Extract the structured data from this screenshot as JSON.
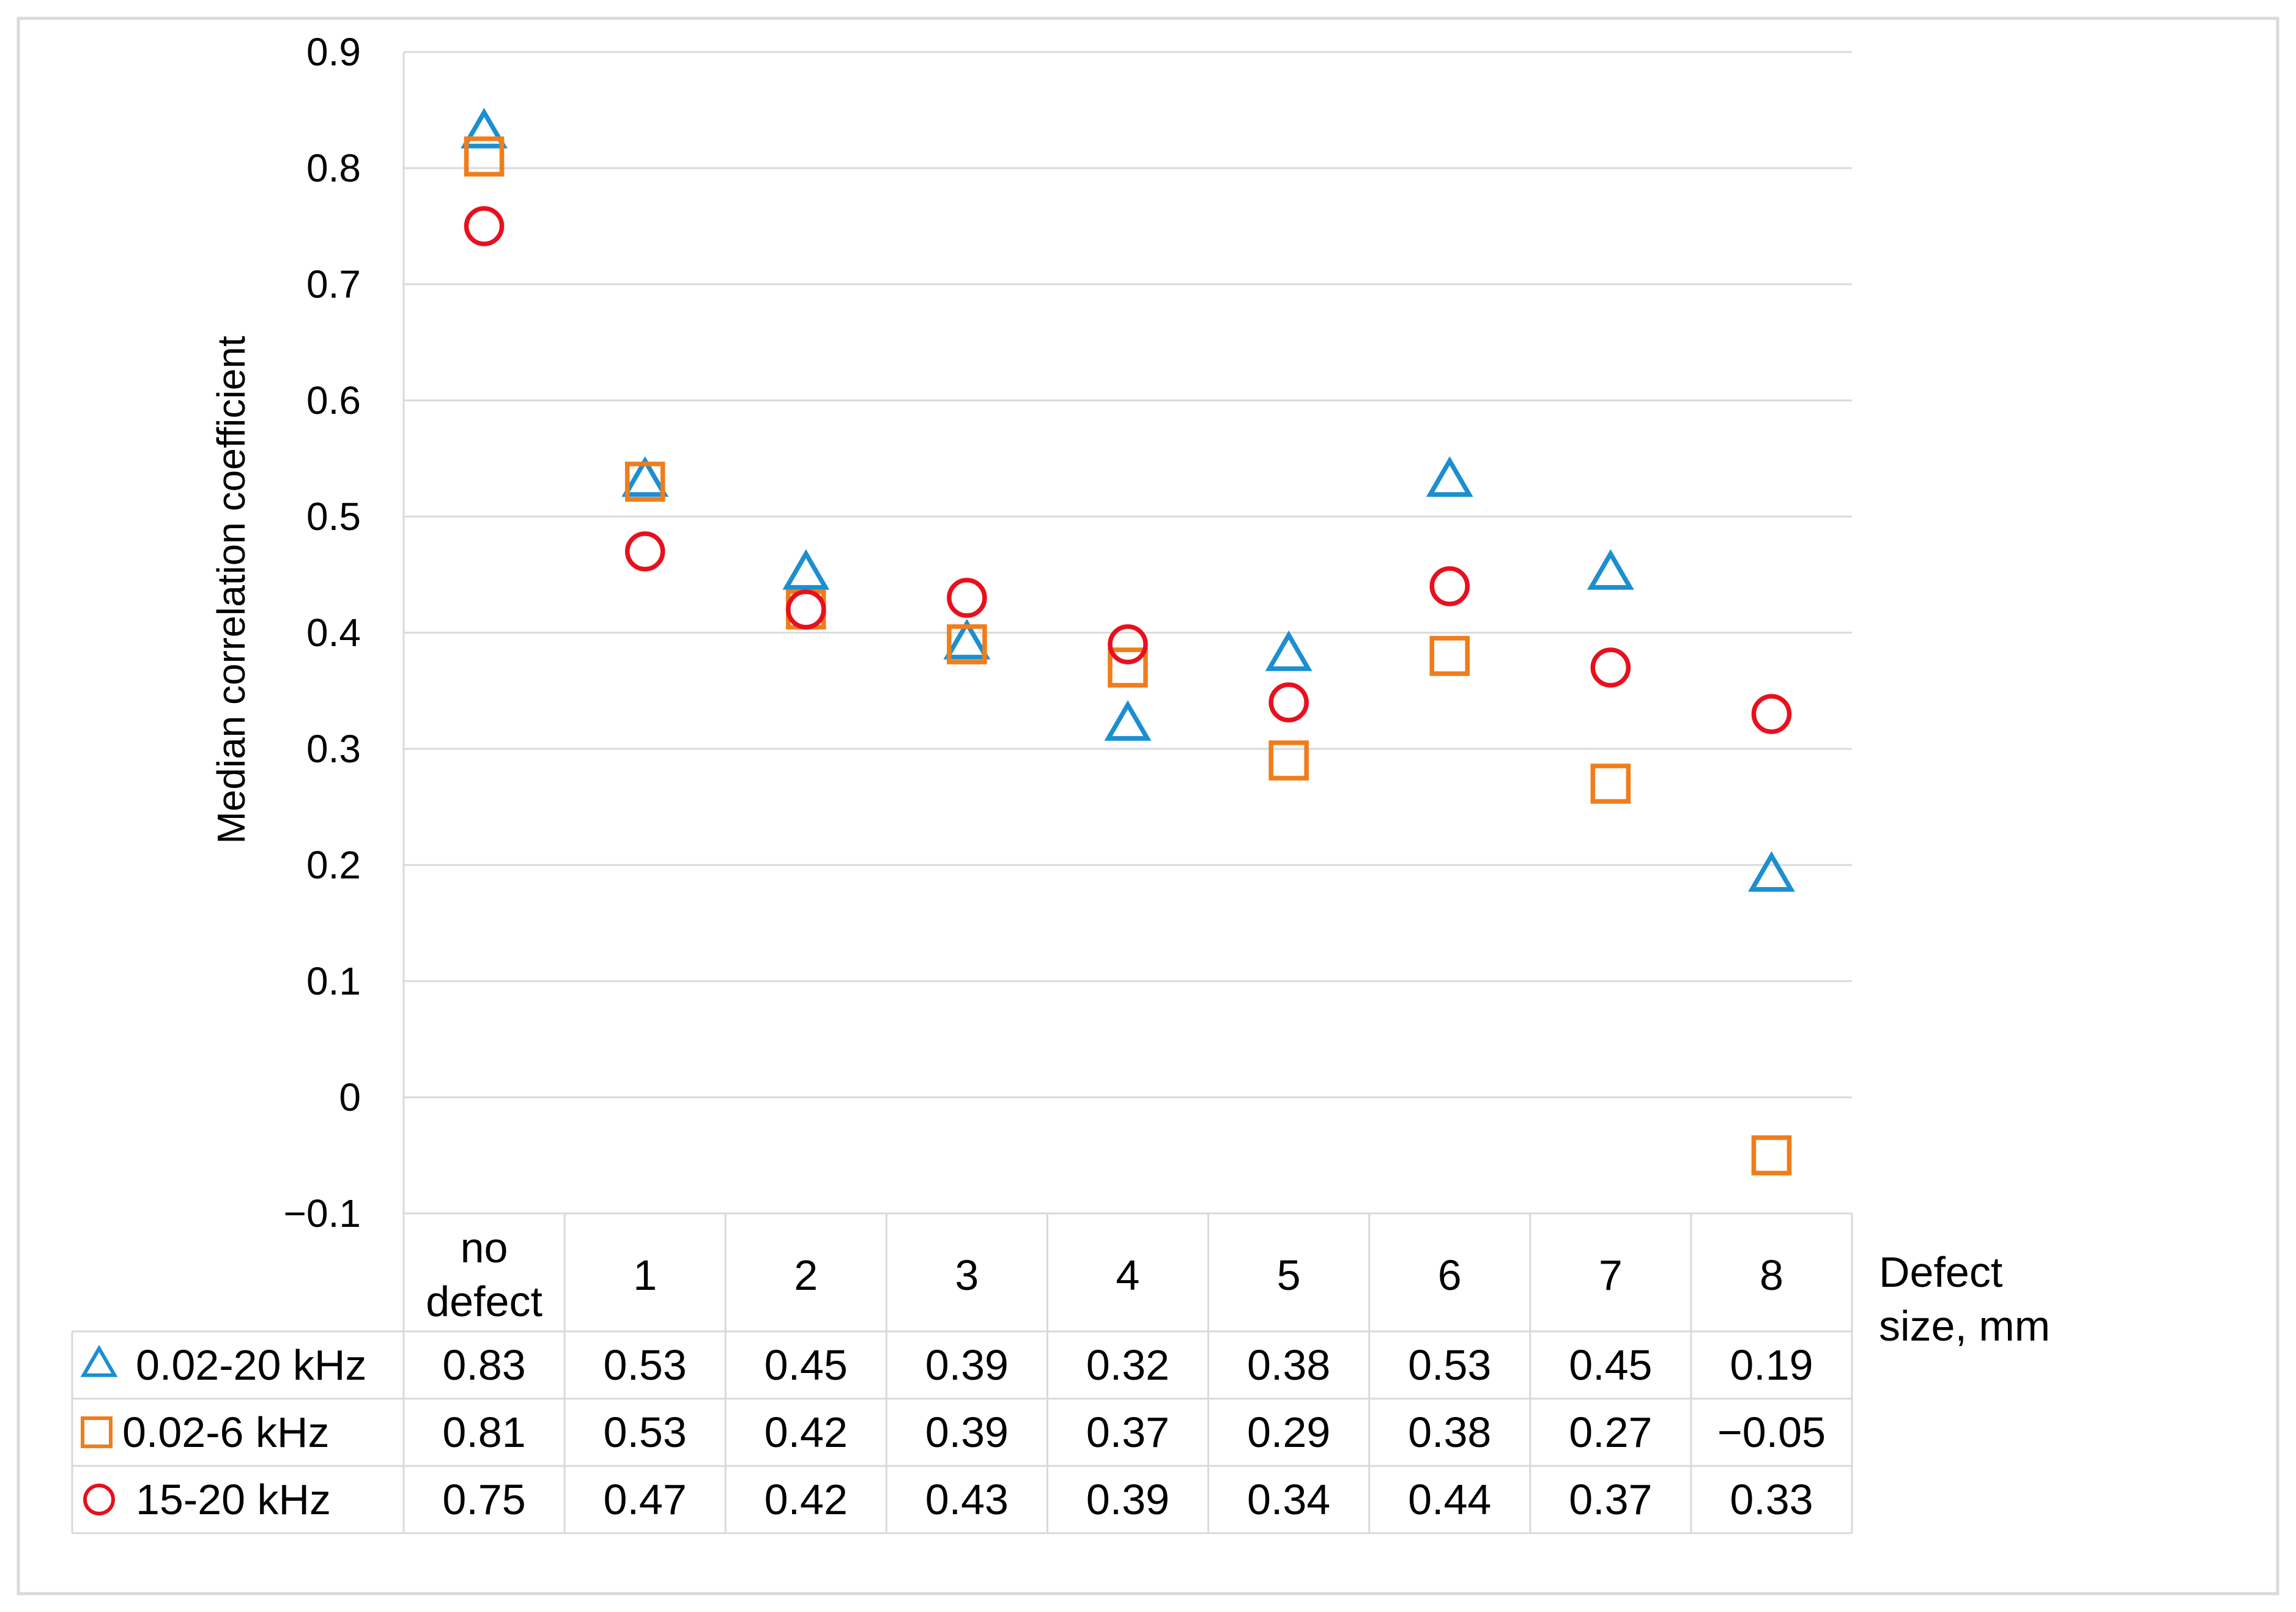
{
  "chart_data": {
    "type": "scatter",
    "ylabel": "Median correlation coefficient",
    "xlabel": [
      "Defect",
      "size, mm"
    ],
    "ylim": [
      -0.1,
      0.9
    ],
    "yticks": [
      "0.9",
      "0.8",
      "0.7",
      "0.6",
      "0.5",
      "0.4",
      "0.3",
      "0.2",
      "0.1",
      "0",
      "−0.1"
    ],
    "categories": [
      "no defect",
      "1",
      "2",
      "3",
      "4",
      "5",
      "6",
      "7",
      "8"
    ],
    "category_lines": [
      [
        "no",
        "defect"
      ],
      [
        "1"
      ],
      [
        "2"
      ],
      [
        "3"
      ],
      [
        "4"
      ],
      [
        "5"
      ],
      [
        "6"
      ],
      [
        "7"
      ],
      [
        "8"
      ]
    ],
    "series": [
      {
        "name": "0.02-20 kHz",
        "marker": "triangle",
        "color": "#1b8fd0",
        "values": [
          0.83,
          0.53,
          0.45,
          0.39,
          0.32,
          0.38,
          0.53,
          0.45,
          0.19
        ],
        "labels": [
          "0.83",
          "0.53",
          "0.45",
          "0.39",
          "0.32",
          "0.38",
          "0.53",
          "0.45",
          "0.19"
        ]
      },
      {
        "name": "0.02-6 kHz",
        "marker": "square",
        "color": "#f07d1b",
        "values": [
          0.81,
          0.53,
          0.42,
          0.39,
          0.37,
          0.29,
          0.38,
          0.27,
          -0.05
        ],
        "labels": [
          "0.81",
          "0.53",
          "0.42",
          "0.39",
          "0.37",
          "0.29",
          "0.38",
          "0.27",
          "−0.05"
        ]
      },
      {
        "name": "15-20 kHz",
        "marker": "circle",
        "color": "#e8101e",
        "values": [
          0.75,
          0.47,
          0.42,
          0.43,
          0.39,
          0.34,
          0.44,
          0.37,
          0.33
        ],
        "labels": [
          "0.75",
          "0.47",
          "0.42",
          "0.43",
          "0.39",
          "0.34",
          "0.44",
          "0.37",
          "0.33"
        ]
      }
    ],
    "grid": true
  }
}
